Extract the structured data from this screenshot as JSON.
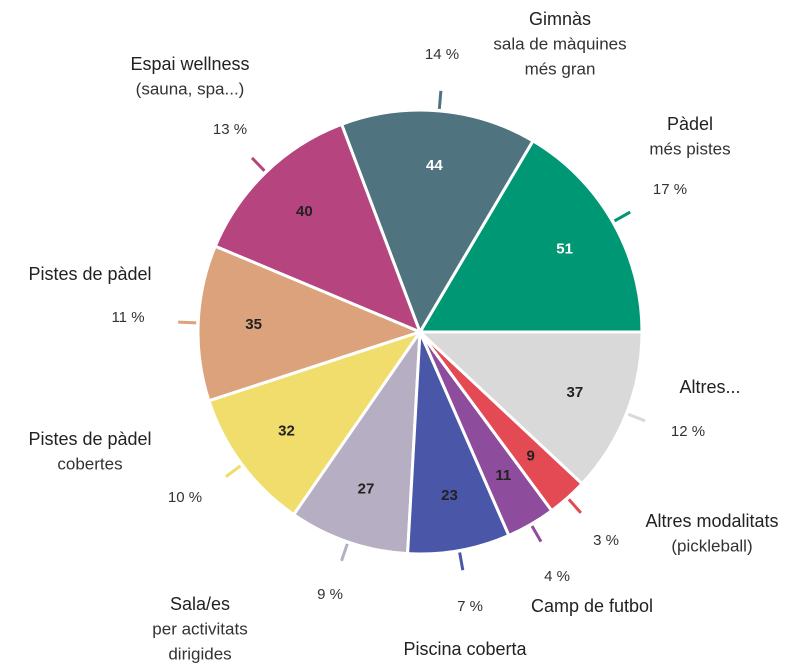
{
  "chart_data": {
    "type": "pie",
    "categories": [
      "Pàdel",
      "Gimnàs",
      "Espai wellness",
      "Pistes de pàdel",
      "Pistes de pàdel",
      "Sala/es",
      "Piscina coberta",
      "Camp de futbol",
      "Altres modalitats",
      "Altres..."
    ],
    "subtitles": [
      [
        "més pistes"
      ],
      [
        "sala de màquines",
        "més gran"
      ],
      [
        "(sauna, spa...)"
      ],
      null,
      [
        "cobertes"
      ],
      [
        "per activitats",
        "dirigides"
      ],
      null,
      null,
      [
        "(pickleball)"
      ],
      null
    ],
    "values": [
      51,
      44,
      40,
      35,
      32,
      27,
      23,
      11,
      9,
      37
    ],
    "percentages": [
      17,
      14,
      13,
      11,
      10,
      9,
      7,
      4,
      3,
      12
    ],
    "percentage_labels": [
      "17 %",
      "14 %",
      "13 %",
      "11 %",
      "10 %",
      "9 %",
      "7 %",
      "4 %",
      "3 %",
      "12 %"
    ],
    "colors": [
      "#009774",
      "#4f7480",
      "#b5447f",
      "#dca27b",
      "#f1dd6b",
      "#b6afc3",
      "#4a56a8",
      "#8e4c9d",
      "#e34a54",
      "#d9d9d9"
    ],
    "label_colors": [
      "#ffffff",
      "#ffffff",
      "#222222",
      "#222222",
      "#222222",
      "#222222",
      "#222222",
      "#222222",
      "#222222",
      "#222222"
    ]
  }
}
